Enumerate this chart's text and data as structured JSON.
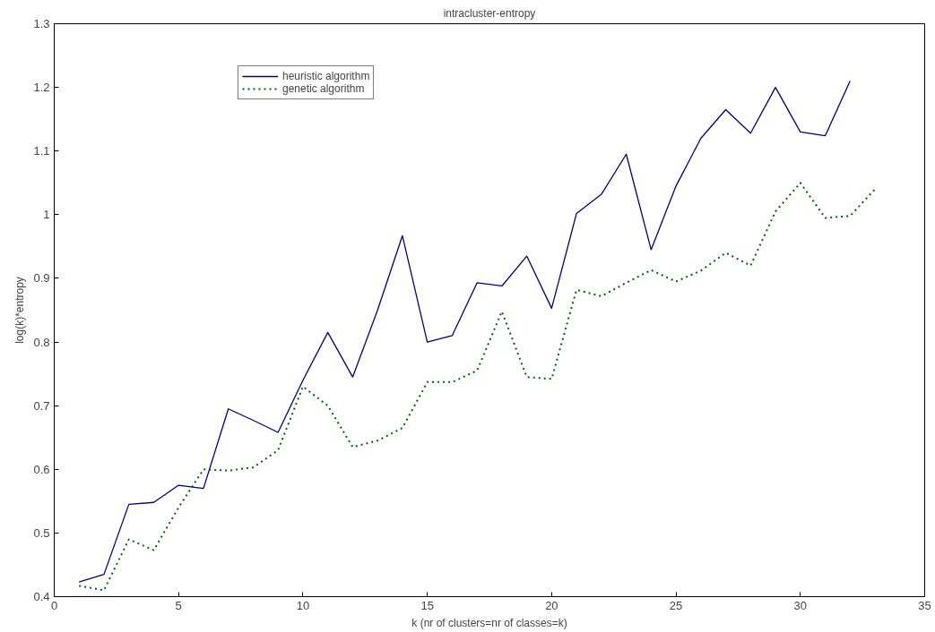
{
  "chart_data": {
    "type": "line",
    "title": "intracluster-entropy",
    "xlabel": "k (nr of clusters=nr of classes=k)",
    "ylabel": "log(k)*entropy",
    "xlim": [
      0,
      35
    ],
    "xticks": [
      0,
      5,
      10,
      15,
      20,
      25,
      30,
      35
    ],
    "ylim": [
      0.4,
      1.3
    ],
    "yticks": [
      0.4,
      0.5,
      0.6,
      0.7,
      0.8,
      0.9,
      1,
      1.1,
      1.2,
      1.3
    ],
    "grid": false,
    "legend": "top left",
    "marker": "none",
    "series": [
      {
        "name": "heuristic algorithm",
        "color": "#000080",
        "line_style": "solid",
        "x": [
          1,
          2,
          3,
          4,
          5,
          6,
          7,
          8,
          9,
          10,
          11,
          12,
          13,
          14,
          15,
          16,
          17,
          18,
          19,
          20,
          21,
          22,
          23,
          24,
          25,
          26,
          27,
          28,
          29,
          30,
          31,
          32
        ],
        "values": [
          0.423,
          0.435,
          0.545,
          0.548,
          0.575,
          0.57,
          0.695,
          0.677,
          0.658,
          0.74,
          0.815,
          0.745,
          0.85,
          0.967,
          0.8,
          0.81,
          0.893,
          0.888,
          0.935,
          0.853,
          1.002,
          1.032,
          1.095,
          0.945,
          1.045,
          1.12,
          1.165,
          1.128,
          1.2,
          1.13,
          1.124,
          1.21
        ]
      },
      {
        "name": "genetic algorithm",
        "color": "#006400",
        "line_style": "dotted",
        "x": [
          1,
          2,
          3,
          4,
          5,
          6,
          7,
          8,
          9,
          10,
          11,
          12,
          13,
          14,
          15,
          16,
          17,
          18,
          19,
          20,
          21,
          22,
          23,
          24,
          25,
          26,
          27,
          28,
          29,
          30,
          31,
          32,
          33
        ],
        "values": [
          0.417,
          0.41,
          0.49,
          0.473,
          0.54,
          0.6,
          0.598,
          0.603,
          0.63,
          0.73,
          0.7,
          0.635,
          0.645,
          0.665,
          0.737,
          0.737,
          0.755,
          0.848,
          0.745,
          0.742,
          0.882,
          0.872,
          0.893,
          0.913,
          0.895,
          0.912,
          0.94,
          0.92,
          1.005,
          1.05,
          0.995,
          0.998,
          1.04
        ]
      }
    ]
  }
}
